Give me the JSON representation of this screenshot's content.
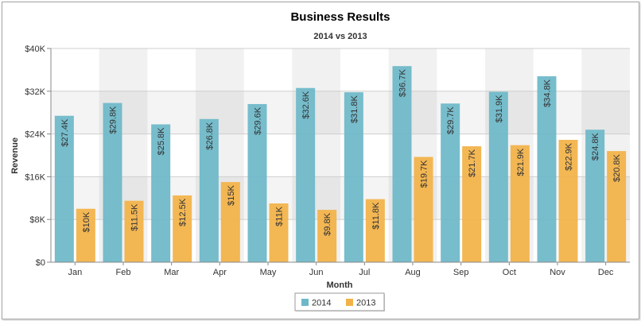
{
  "chart_data": {
    "type": "bar",
    "title": "Business Results",
    "subtitle": "2014 vs 2013",
    "xlabel": "Month",
    "ylabel": "Revenue",
    "ylim": [
      0,
      40000
    ],
    "yticks": [
      0,
      8000,
      16000,
      24000,
      32000,
      40000
    ],
    "ytick_labels": [
      "$0",
      "$8K",
      "$16K",
      "$24K",
      "$32K",
      "$40K"
    ],
    "categories": [
      "Jan",
      "Feb",
      "Mar",
      "Apr",
      "May",
      "Jun",
      "Jul",
      "Aug",
      "Sep",
      "Oct",
      "Nov",
      "Dec"
    ],
    "series": [
      {
        "name": "2014",
        "color": "#6db8c8",
        "values": [
          27400,
          29800,
          25800,
          26800,
          29600,
          32600,
          31800,
          36700,
          29700,
          31900,
          34800,
          24800
        ],
        "labels": [
          "$27.4K",
          "$29.8K",
          "$25.8K",
          "$26.8K",
          "$29.6K",
          "$32.6K",
          "$31.8K",
          "$36.7K",
          "$29.7K",
          "$31.9K",
          "$34.8K",
          "$24.8K"
        ]
      },
      {
        "name": "2013",
        "color": "#f2b247",
        "values": [
          10000,
          11500,
          12500,
          15000,
          11000,
          9800,
          11800,
          19700,
          21700,
          21900,
          22900,
          20800
        ],
        "labels": [
          "$10K",
          "$11.5K",
          "$12.5K",
          "$15K",
          "$11K",
          "$9.8K",
          "$11.8K",
          "$19.7K",
          "$21.7K",
          "$21.9K",
          "$22.9K",
          "$20.8K"
        ]
      }
    ],
    "grid": true,
    "legend_position": "bottom-center"
  }
}
